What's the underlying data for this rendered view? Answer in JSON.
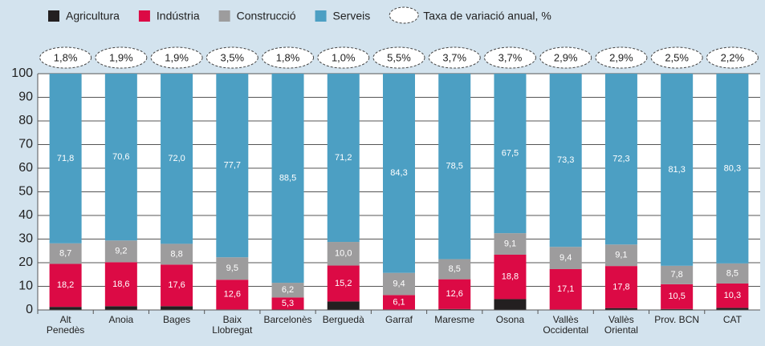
{
  "chart_data": {
    "type": "stacked_bar",
    "categories": [
      "Alt\nPenedès",
      "Anoia",
      "Bages",
      "Baix\nLlobregat",
      "Barcelonès",
      "Berguedà",
      "Garraf",
      "Maresme",
      "Osona",
      "Vallès\nOccidental",
      "Vallès\nOriental",
      "Prov. BCN",
      "CAT"
    ],
    "series": [
      {
        "name": "Agricultura",
        "color": "#231f20",
        "values": [
          1.3,
          1.6,
          1.6,
          0.2,
          0,
          3.6,
          0.2,
          0.4,
          4.6,
          0.2,
          0.8,
          0.4,
          0.9
        ]
      },
      {
        "name": "Indústria",
        "color": "#dc0a45",
        "values": [
          18.2,
          18.6,
          17.6,
          12.6,
          5.3,
          15.2,
          6.1,
          12.6,
          18.8,
          17.1,
          17.8,
          10.5,
          10.3
        ],
        "value_labels": [
          "18,2",
          "18,6",
          "17,6",
          "12,6",
          "5,3",
          "15,2",
          "6,1",
          "12,6",
          "18,8",
          "17,1",
          "17,8",
          "10,5",
          "10,3"
        ]
      },
      {
        "name": "Construcció",
        "color": "#9d9c9d",
        "values": [
          8.7,
          9.2,
          8.8,
          9.5,
          6.2,
          10.0,
          9.4,
          8.5,
          9.1,
          9.4,
          9.1,
          7.8,
          8.5
        ],
        "value_labels": [
          "8,7",
          "9,2",
          "8,8",
          "9,5",
          "6,2",
          "10,0",
          "9,4",
          "8,5",
          "9,1",
          "9,4",
          "9,1",
          "7,8",
          "8,5"
        ]
      },
      {
        "name": "Serveis",
        "color": "#4c9fc3",
        "values": [
          71.8,
          70.6,
          72.0,
          77.7,
          88.5,
          71.2,
          84.3,
          78.5,
          67.5,
          73.3,
          72.3,
          81.3,
          80.3
        ],
        "value_labels": [
          "71,8",
          "70,6",
          "72,0",
          "77,7",
          "88,5",
          "71,2",
          "84,3",
          "78,5",
          "67,5",
          "73,3",
          "72,3",
          "81,3",
          "80,3"
        ]
      }
    ],
    "growth": {
      "name": "Taxa de variació anual, %",
      "values": [
        1.8,
        1.9,
        1.9,
        3.5,
        1.8,
        1.0,
        5.5,
        3.7,
        3.7,
        2.9,
        2.9,
        2.5,
        2.2
      ],
      "value_labels": [
        "1,8%",
        "1,9%",
        "1,9%",
        "3,5%",
        "1,8%",
        "1,0%",
        "5,5%",
        "3,7%",
        "3,7%",
        "2,9%",
        "2,9%",
        "2,5%",
        "2,2%"
      ]
    },
    "ylim": [
      0,
      100
    ],
    "yticks": [
      0,
      10,
      20,
      30,
      40,
      50,
      60,
      70,
      80,
      90,
      100
    ],
    "grid": true
  }
}
